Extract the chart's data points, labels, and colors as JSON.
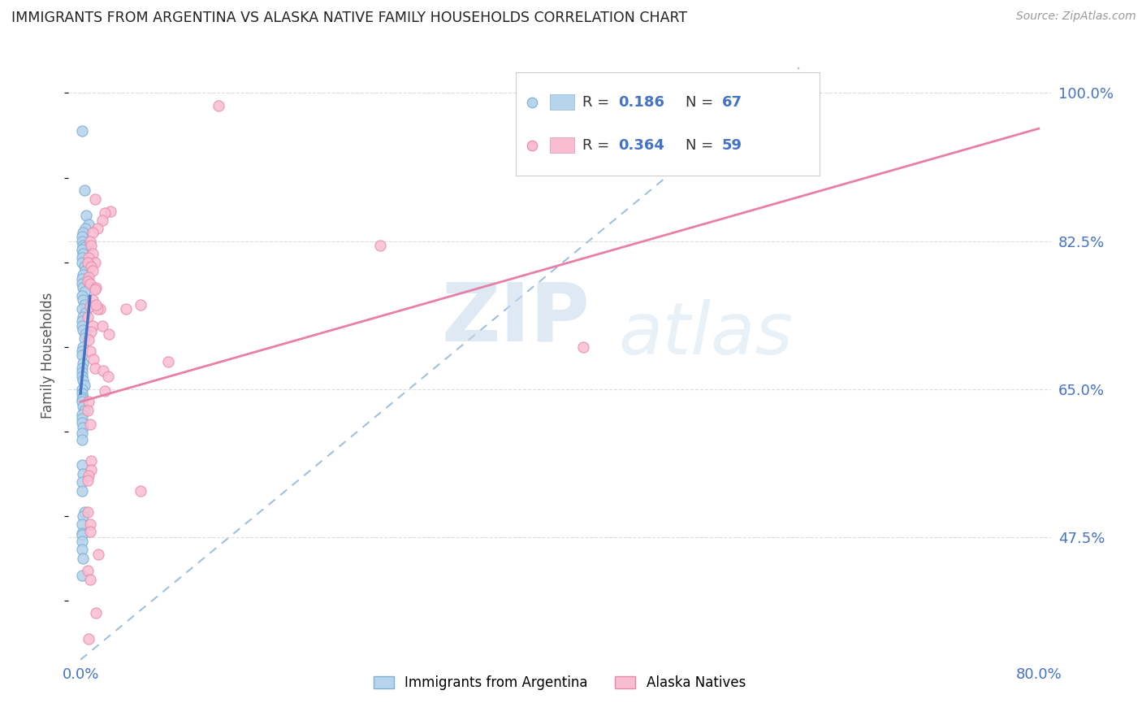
{
  "title": "IMMIGRANTS FROM ARGENTINA VS ALASKA NATIVE FAMILY HOUSEHOLDS CORRELATION CHART",
  "source": "Source: ZipAtlas.com",
  "ylabel": "Family Households",
  "ytick_labels": [
    "100.0%",
    "82.5%",
    "65.0%",
    "47.5%"
  ],
  "ytick_values": [
    1.0,
    0.825,
    0.65,
    0.475
  ],
  "xlim": [
    0.0,
    0.8
  ],
  "ylim": [
    0.33,
    1.05
  ],
  "argentina_x": [
    0.001,
    0.003,
    0.005,
    0.007,
    0.004,
    0.002,
    0.001,
    0.001,
    0.002,
    0.003,
    0.001,
    0.002,
    0.001,
    0.001,
    0.003,
    0.004,
    0.002,
    0.001,
    0.001,
    0.002,
    0.003,
    0.001,
    0.002,
    0.003,
    0.001,
    0.004,
    0.002,
    0.001,
    0.001,
    0.002,
    0.004,
    0.003,
    0.002,
    0.001,
    0.001,
    0.002,
    0.001,
    0.001,
    0.001,
    0.002,
    0.003,
    0.001,
    0.001,
    0.002,
    0.001,
    0.001,
    0.002,
    0.003,
    0.001,
    0.001,
    0.001,
    0.002,
    0.001,
    0.001,
    0.001,
    0.002,
    0.001,
    0.001,
    0.003,
    0.002,
    0.001,
    0.001,
    0.001,
    0.001,
    0.001,
    0.002,
    0.001
  ],
  "argentina_y": [
    0.955,
    0.885,
    0.855,
    0.845,
    0.84,
    0.835,
    0.83,
    0.825,
    0.82,
    0.818,
    0.815,
    0.81,
    0.805,
    0.8,
    0.795,
    0.79,
    0.785,
    0.78,
    0.775,
    0.77,
    0.765,
    0.76,
    0.755,
    0.75,
    0.745,
    0.74,
    0.735,
    0.73,
    0.725,
    0.72,
    0.715,
    0.71,
    0.7,
    0.695,
    0.69,
    0.68,
    0.675,
    0.67,
    0.665,
    0.66,
    0.655,
    0.65,
    0.645,
    0.64,
    0.638,
    0.635,
    0.63,
    0.625,
    0.62,
    0.615,
    0.61,
    0.605,
    0.598,
    0.59,
    0.56,
    0.55,
    0.54,
    0.53,
    0.505,
    0.5,
    0.49,
    0.48,
    0.478,
    0.47,
    0.46,
    0.45,
    0.43
  ],
  "alaska_x": [
    0.115,
    0.012,
    0.025,
    0.02,
    0.018,
    0.014,
    0.01,
    0.008,
    0.009,
    0.01,
    0.007,
    0.012,
    0.006,
    0.009,
    0.01,
    0.007,
    0.006,
    0.008,
    0.013,
    0.012,
    0.01,
    0.008,
    0.016,
    0.014,
    0.006,
    0.01,
    0.009,
    0.007,
    0.008,
    0.011,
    0.012,
    0.019,
    0.023,
    0.013,
    0.018,
    0.024,
    0.038,
    0.05,
    0.073,
    0.42,
    0.6,
    0.007,
    0.006,
    0.008,
    0.009,
    0.05,
    0.009,
    0.007,
    0.006,
    0.008,
    0.015,
    0.006,
    0.008,
    0.013,
    0.02,
    0.006,
    0.008,
    0.007,
    0.25
  ],
  "alaska_y": [
    0.985,
    0.875,
    0.86,
    0.858,
    0.85,
    0.84,
    0.835,
    0.825,
    0.82,
    0.81,
    0.805,
    0.8,
    0.8,
    0.795,
    0.79,
    0.782,
    0.778,
    0.775,
    0.77,
    0.768,
    0.755,
    0.748,
    0.745,
    0.745,
    0.735,
    0.725,
    0.718,
    0.708,
    0.695,
    0.685,
    0.675,
    0.672,
    0.665,
    0.75,
    0.725,
    0.715,
    0.745,
    0.75,
    0.682,
    0.7,
    0.938,
    0.635,
    0.625,
    0.608,
    0.565,
    0.53,
    0.555,
    0.548,
    0.542,
    0.49,
    0.455,
    0.435,
    0.425,
    0.385,
    0.648,
    0.505,
    0.482,
    0.355,
    0.82
  ],
  "background_color": "#ffffff",
  "grid_color": "#dddddd",
  "title_color": "#222222",
  "axis_label_color": "#4472c4",
  "arg_scatter_fill": "#b8d4ed",
  "arg_scatter_edge": "#7bafd4",
  "alaska_scatter_fill": "#f9bdd0",
  "alaska_scatter_edge": "#e888a8",
  "arg_line_color": "#4472c4",
  "alaska_line_color": "#e87fa8",
  "dash_line_color": "#a0c0e0",
  "arg_line_x0": 0.0,
  "arg_line_x1": 0.008,
  "arg_line_y0": 0.645,
  "arg_line_y1": 0.76,
  "alaska_line_x0": 0.0,
  "alaska_line_x1": 0.8,
  "alaska_line_y0": 0.635,
  "alaska_line_y1": 0.958,
  "dash_line_x0": 0.0,
  "dash_line_x1": 0.6,
  "dash_line_y0": 0.33,
  "dash_line_y1": 1.03
}
